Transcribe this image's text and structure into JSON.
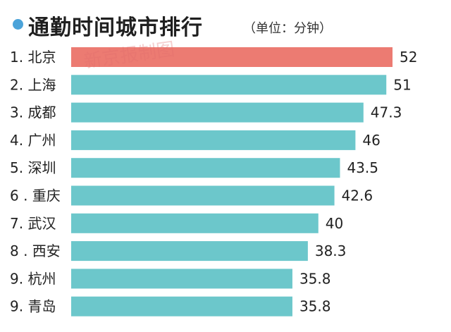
{
  "header": {
    "title": "通勤时间城市排行",
    "unit": "（单位：分钟）"
  },
  "watermark": "新京报制图",
  "colors": {
    "highlight": "#ec7b72",
    "bar": "#6cc7cb",
    "dot": "#4ba3d9"
  },
  "chart_data": {
    "type": "bar",
    "orientation": "horizontal",
    "title": "通勤时间城市排行",
    "unit": "（单位：分钟）",
    "categories": [
      "1. 北京",
      "2. 上海",
      "3. 成都",
      "4. 广州",
      "5. 深圳",
      "6 . 重庆",
      "7. 武汉",
      "8 . 西安",
      "9. 杭州",
      "9. 青岛"
    ],
    "values": [
      52,
      51,
      47.3,
      46,
      43.5,
      42.6,
      40,
      38.3,
      35.8,
      35.8
    ],
    "value_labels": [
      "52",
      "51",
      "47.3",
      "46",
      "43.5",
      "42.6",
      "40",
      "38.3",
      "35.8",
      "35.8"
    ],
    "highlight_index": 0,
    "xlim": [
      0,
      52
    ],
    "grid": false,
    "legend": "none"
  }
}
